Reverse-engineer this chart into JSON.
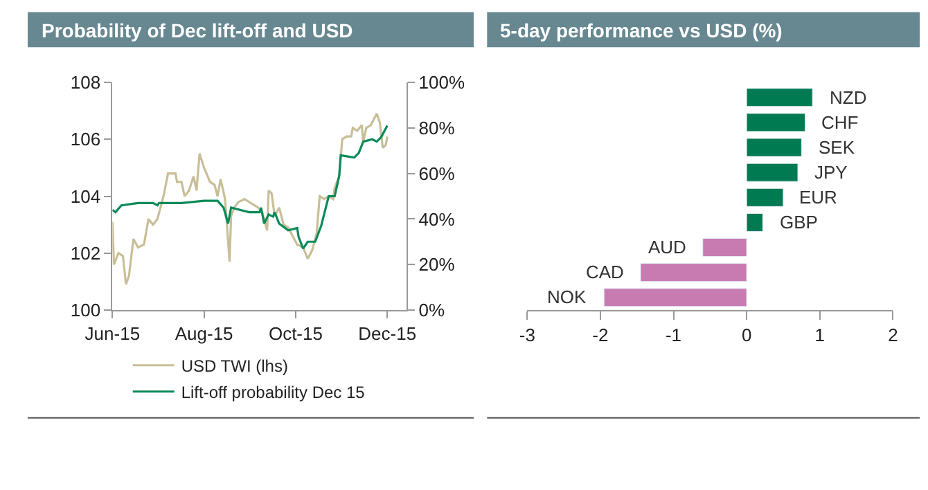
{
  "chart_data": [
    {
      "type": "line",
      "title": "Probability of Dec lift-off and USD",
      "xlim": [
        "2015-06-01",
        "2015-12-14"
      ],
      "xticks": [
        {
          "value": "2015-06-01",
          "label": "Jun-15"
        },
        {
          "value": "2015-08-01",
          "label": "Aug-15"
        },
        {
          "value": "2015-10-01",
          "label": "Oct-15"
        },
        {
          "value": "2015-12-01",
          "label": "Dec-15"
        }
      ],
      "ylim": [
        100,
        108
      ],
      "yticks": [
        100,
        102,
        104,
        106,
        108
      ],
      "y2lim": [
        0,
        100
      ],
      "y2ticks": [
        {
          "value": 0,
          "label": "0%"
        },
        {
          "value": 20,
          "label": "20%"
        },
        {
          "value": 40,
          "label": "40%"
        },
        {
          "value": 60,
          "label": "60%"
        },
        {
          "value": 80,
          "label": "80%"
        },
        {
          "value": 100,
          "label": "100%"
        }
      ],
      "legend": "bottom",
      "marker": "none",
      "line_style": "solid",
      "series": [
        {
          "name": "USD TWI (lhs)",
          "color": "#c8bf98",
          "x": [
            "2015-06-01",
            "2015-06-02",
            "2015-06-05",
            "2015-06-08",
            "2015-06-10",
            "2015-06-12",
            "2015-06-15",
            "2015-06-18",
            "2015-06-22",
            "2015-06-25",
            "2015-06-28",
            "2015-07-01",
            "2015-07-05",
            "2015-07-08",
            "2015-07-13",
            "2015-07-14",
            "2015-07-17",
            "2015-07-19",
            "2015-07-22",
            "2015-07-25",
            "2015-07-27",
            "2015-07-29",
            "2015-08-01",
            "2015-08-05",
            "2015-08-08",
            "2015-08-10",
            "2015-08-12",
            "2015-08-15",
            "2015-08-18",
            "2015-08-19",
            "2015-08-21",
            "2015-08-24",
            "2015-08-28",
            "2015-08-31",
            "2015-09-03",
            "2015-09-06",
            "2015-09-09",
            "2015-09-12",
            "2015-09-13",
            "2015-09-15",
            "2015-09-17",
            "2015-09-20",
            "2015-09-23",
            "2015-09-26",
            "2015-09-29",
            "2015-10-02",
            "2015-10-06",
            "2015-10-09",
            "2015-10-12",
            "2015-10-15",
            "2015-10-17",
            "2015-10-20",
            "2015-10-23",
            "2015-10-26",
            "2015-10-27",
            "2015-10-30",
            "2015-11-01",
            "2015-11-04",
            "2015-11-07",
            "2015-11-08",
            "2015-11-11",
            "2015-11-14",
            "2015-11-15",
            "2015-11-17",
            "2015-11-20",
            "2015-11-24",
            "2015-11-26",
            "2015-11-28",
            "2015-11-30",
            "2015-12-01"
          ],
          "values": [
            103.1,
            101.6,
            102.0,
            101.9,
            100.9,
            101.2,
            102.5,
            102.2,
            102.3,
            103.2,
            103.0,
            103.2,
            104.0,
            104.8,
            104.8,
            104.5,
            104.5,
            104.0,
            104.2,
            104.7,
            104.2,
            105.5,
            105.0,
            104.5,
            104.4,
            104.0,
            104.6,
            103.9,
            101.7,
            103.3,
            103.6,
            103.8,
            103.9,
            103.8,
            103.7,
            103.6,
            103.4,
            102.8,
            104.2,
            104.1,
            103.3,
            103.6,
            103.0,
            102.9,
            102.6,
            102.3,
            102.2,
            101.8,
            102.1,
            102.7,
            104.0,
            103.9,
            104.0,
            103.9,
            104.3,
            104.7,
            106.0,
            106.1,
            106.1,
            106.4,
            106.3,
            106.5,
            105.9,
            106.4,
            106.5,
            106.9,
            106.6,
            105.7,
            105.8,
            106.1
          ]
        },
        {
          "name": "Lift-off probability Dec 15",
          "color": "#0a8a5a",
          "axis": "y2",
          "x": [
            "2015-06-01",
            "2015-06-03",
            "2015-06-07",
            "2015-06-18",
            "2015-06-28",
            "2015-07-01",
            "2015-07-02",
            "2015-07-17",
            "2015-08-01",
            "2015-08-10",
            "2015-08-14",
            "2015-08-17",
            "2015-08-19",
            "2015-08-31",
            "2015-09-07",
            "2015-09-08",
            "2015-09-10",
            "2015-09-13",
            "2015-09-16",
            "2015-09-17",
            "2015-09-20",
            "2015-09-26",
            "2015-10-02",
            "2015-10-03",
            "2015-10-06",
            "2015-10-09",
            "2015-10-14",
            "2015-10-18",
            "2015-10-23",
            "2015-10-27",
            "2015-10-30",
            "2015-10-31",
            "2015-11-09",
            "2015-11-12",
            "2015-11-15",
            "2015-11-21",
            "2015-11-24",
            "2015-11-27",
            "2015-12-01"
          ],
          "values": [
            44,
            43,
            46,
            47,
            47,
            46,
            47,
            47,
            48,
            48,
            45,
            38,
            45,
            43,
            43,
            45,
            38,
            42,
            41,
            43,
            38,
            35,
            36,
            32,
            27,
            30,
            30,
            37,
            50,
            50,
            59,
            68,
            67,
            69,
            74,
            75,
            74,
            76,
            81
          ]
        }
      ]
    },
    {
      "type": "bar",
      "orientation": "horizontal",
      "title": "5-day performance vs USD (%)",
      "categories": [
        "NZD",
        "CHF",
        "SEK",
        "JPY",
        "EUR",
        "GBP",
        "AUD",
        "CAD",
        "NOK"
      ],
      "values": [
        0.9,
        0.8,
        0.75,
        0.7,
        0.5,
        0.22,
        -0.6,
        -1.45,
        -1.95
      ],
      "colors": [
        "#007a50",
        "#007a50",
        "#007a50",
        "#007a50",
        "#007a50",
        "#007a50",
        "#c87bb0",
        "#c87bb0",
        "#c87bb0"
      ],
      "xlim": [
        -3,
        2
      ],
      "xticks": [
        -3,
        -2,
        -1,
        0,
        1,
        2
      ]
    }
  ]
}
